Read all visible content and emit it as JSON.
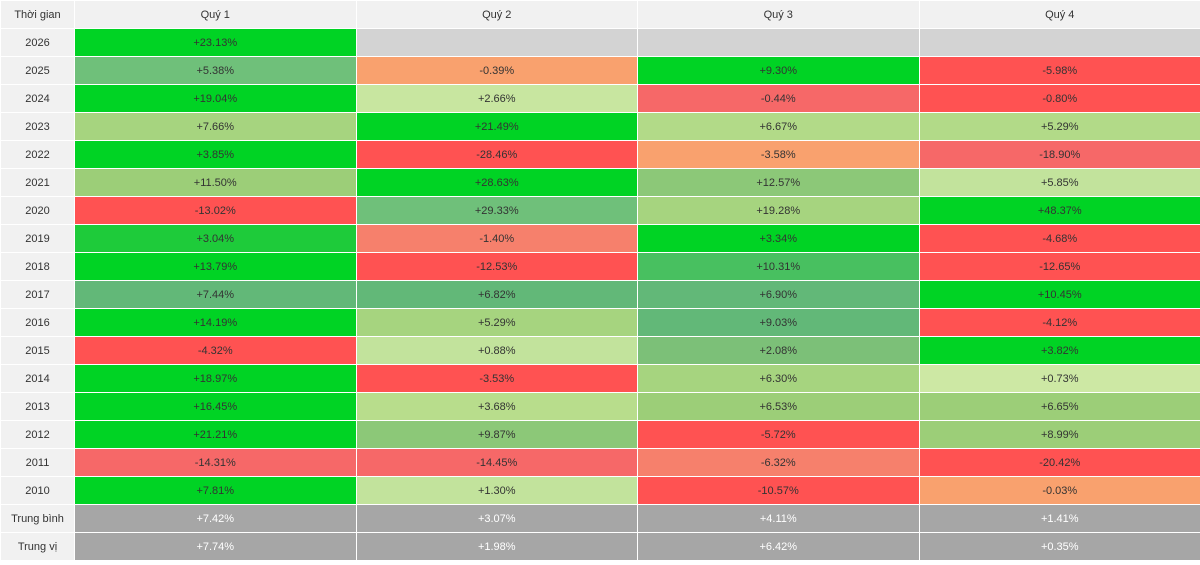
{
  "header": {
    "period_label": "Thời gian",
    "quarters": [
      "Quý 1",
      "Quý 2",
      "Quý 3",
      "Quý 4"
    ]
  },
  "rows": [
    {
      "year": "2026",
      "values": [
        "+23.13%",
        "",
        "",
        ""
      ],
      "colors": [
        "#00d324",
        "#d3d3d3",
        "#d3d3d3",
        "#d3d3d3"
      ]
    },
    {
      "year": "2025",
      "values": [
        "+5.38%",
        "-0.39%",
        "+9.30%",
        "-5.98%"
      ],
      "colors": [
        "#6fc07a",
        "#f9a16e",
        "#00d324",
        "#ff5252"
      ]
    },
    {
      "year": "2024",
      "values": [
        "+19.04%",
        "+2.66%",
        "-0.44%",
        "-0.80%"
      ],
      "colors": [
        "#00d324",
        "#c8e6a0",
        "#f66868",
        "#ff5252"
      ]
    },
    {
      "year": "2023",
      "values": [
        "+7.66%",
        "+21.49%",
        "+6.67%",
        "+5.29%"
      ],
      "colors": [
        "#a6d47f",
        "#00d324",
        "#b2da88",
        "#b2da88"
      ]
    },
    {
      "year": "2022",
      "values": [
        "+3.85%",
        "-28.46%",
        "-3.58%",
        "-18.90%"
      ],
      "colors": [
        "#00d324",
        "#ff5252",
        "#f9a16e",
        "#f66868"
      ]
    },
    {
      "year": "2021",
      "values": [
        "+11.50%",
        "+28.63%",
        "+12.57%",
        "+5.85%"
      ],
      "colors": [
        "#9cce78",
        "#00d324",
        "#8cc878",
        "#c2e39c"
      ]
    },
    {
      "year": "2020",
      "values": [
        "-13.02%",
        "+29.33%",
        "+19.28%",
        "+48.37%"
      ],
      "colors": [
        "#ff5252",
        "#6fc07a",
        "#a6d47f",
        "#00d324"
      ]
    },
    {
      "year": "2019",
      "values": [
        "+3.04%",
        "-1.40%",
        "+3.34%",
        "-4.68%"
      ],
      "colors": [
        "#1ecb3a",
        "#f6806c",
        "#00d324",
        "#ff5252"
      ]
    },
    {
      "year": "2018",
      "values": [
        "+13.79%",
        "-12.53%",
        "+10.31%",
        "-12.65%"
      ],
      "colors": [
        "#00d324",
        "#ff5252",
        "#48c060",
        "#ff5252"
      ]
    },
    {
      "year": "2017",
      "values": [
        "+7.44%",
        "+6.82%",
        "+6.90%",
        "+10.45%"
      ],
      "colors": [
        "#62b878",
        "#62b878",
        "#62b878",
        "#00d324"
      ]
    },
    {
      "year": "2016",
      "values": [
        "+14.19%",
        "+5.29%",
        "+9.03%",
        "-4.12%"
      ],
      "colors": [
        "#00d324",
        "#a6d47f",
        "#62b878",
        "#ff5252"
      ]
    },
    {
      "year": "2015",
      "values": [
        "-4.32%",
        "+0.88%",
        "+2.08%",
        "+3.82%"
      ],
      "colors": [
        "#ff5252",
        "#c2e39c",
        "#7cc078",
        "#00d324"
      ]
    },
    {
      "year": "2014",
      "values": [
        "+18.97%",
        "-3.53%",
        "+6.30%",
        "+0.73%"
      ],
      "colors": [
        "#00d324",
        "#ff5252",
        "#a6d47f",
        "#cde8a4"
      ]
    },
    {
      "year": "2013",
      "values": [
        "+16.45%",
        "+3.68%",
        "+6.53%",
        "+6.65%"
      ],
      "colors": [
        "#00d324",
        "#b8dd8c",
        "#9cce78",
        "#9cce78"
      ]
    },
    {
      "year": "2012",
      "values": [
        "+21.21%",
        "+9.87%",
        "-5.72%",
        "+8.99%"
      ],
      "colors": [
        "#00d324",
        "#8cc878",
        "#ff5252",
        "#9cce78"
      ]
    },
    {
      "year": "2011",
      "values": [
        "-14.31%",
        "-14.45%",
        "-6.32%",
        "-20.42%"
      ],
      "colors": [
        "#f66868",
        "#f66868",
        "#f6806c",
        "#ff5252"
      ]
    },
    {
      "year": "2010",
      "values": [
        "+7.81%",
        "+1.30%",
        "-10.57%",
        "-0.03%"
      ],
      "colors": [
        "#00d324",
        "#c2e39c",
        "#ff5252",
        "#f9a16e"
      ]
    }
  ],
  "summary": [
    {
      "label": "Trung bình",
      "values": [
        "+7.42%",
        "+3.07%",
        "+4.11%",
        "+1.41%"
      ]
    },
    {
      "label": "Trung vị",
      "values": [
        "+7.74%",
        "+1.98%",
        "+6.42%",
        "+0.35%"
      ]
    }
  ]
}
